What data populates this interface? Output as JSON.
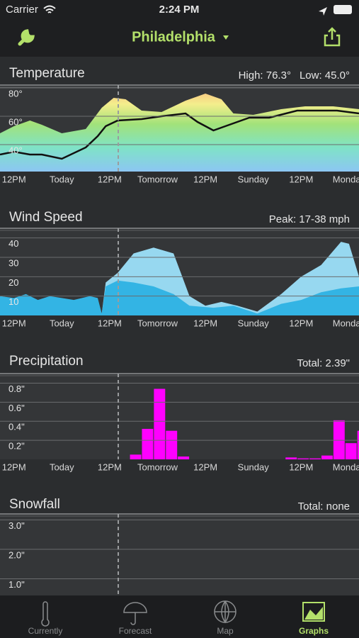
{
  "status_bar": {
    "carrier": "Carrier",
    "time": "2:24 PM"
  },
  "nav": {
    "title": "Philadelphia"
  },
  "tabs": [
    "Currently",
    "Forecast",
    "Map",
    "Graphs"
  ],
  "chart_data": [
    {
      "type": "area",
      "title": "Temperature",
      "stats": [
        "High: 76.3°",
        "Low: 45.0°"
      ],
      "xlim": [
        -3.5,
        86.5
      ],
      "xticks": [
        {
          "value": 0,
          "label": "12PM"
        },
        {
          "value": 12,
          "label": "Today"
        },
        {
          "value": 24,
          "label": "12PM"
        },
        {
          "value": 36,
          "label": "Tomorrow"
        },
        {
          "value": 48,
          "label": "12PM"
        },
        {
          "value": 60,
          "label": "Sunday"
        },
        {
          "value": 72,
          "label": "12PM"
        },
        {
          "value": 84,
          "label": "Monday"
        }
      ],
      "ylim": [
        21,
        82
      ],
      "yticks": [
        {
          "value": 40,
          "label": "40°"
        },
        {
          "value": 60,
          "label": "60°"
        },
        {
          "value": 80,
          "label": "80°"
        }
      ],
      "series": [
        {
          "type": "area",
          "color": "gradient",
          "x": [
            -3.5,
            0,
            4,
            7,
            12,
            18,
            22,
            25,
            28,
            32,
            37,
            43,
            48,
            52,
            55,
            60,
            67,
            73,
            80,
            86.5
          ],
          "values": [
            48,
            53,
            57,
            54,
            48,
            51,
            66,
            73,
            72,
            64,
            63,
            71,
            76,
            72,
            62,
            61,
            65,
            67,
            67,
            65
          ]
        },
        {
          "type": "line",
          "color": "#111111",
          "x": [
            -3.5,
            0,
            4,
            7,
            12,
            18,
            21,
            23,
            26,
            32,
            37,
            43,
            46,
            50,
            53,
            59,
            64,
            71,
            76,
            81,
            86.5
          ],
          "values": [
            33,
            35,
            33,
            33,
            30,
            38,
            46,
            53,
            57,
            58,
            60,
            62,
            56,
            50,
            53,
            59,
            59,
            64,
            64,
            64,
            62
          ]
        }
      ]
    },
    {
      "type": "area",
      "title": "Wind Speed",
      "stats": [
        "Peak: 17-38 mph"
      ],
      "xlim": [
        -3.5,
        86.5
      ],
      "xticks": [
        {
          "value": 0,
          "label": "12PM"
        },
        {
          "value": 12,
          "label": "Today"
        },
        {
          "value": 24,
          "label": "12PM"
        },
        {
          "value": 36,
          "label": "Tomorrow"
        },
        {
          "value": 48,
          "label": "12PM"
        },
        {
          "value": 60,
          "label": "Sunday"
        },
        {
          "value": 72,
          "label": "12PM"
        },
        {
          "value": 84,
          "label": "Monday"
        }
      ],
      "ylim": [
        0,
        45
      ],
      "yticks": [
        10,
        20,
        30,
        40
      ],
      "series": [
        {
          "type": "area",
          "color": "#97d8f0",
          "x": [
            -3.5,
            22,
            23,
            26,
            30,
            35,
            40,
            44,
            48,
            52,
            56,
            61,
            67,
            72,
            77,
            82,
            84,
            86.5
          ],
          "values": [
            10,
            1,
            17,
            22,
            32,
            35,
            32,
            10,
            5,
            7,
            5,
            2,
            11,
            20,
            26,
            38,
            37,
            20
          ]
        },
        {
          "type": "area",
          "color": "#33b4e4",
          "x": [
            -3.5,
            0,
            3,
            6,
            9,
            12,
            15,
            19,
            21,
            22,
            23,
            24,
            26,
            30,
            35,
            40,
            44,
            50,
            55,
            61,
            67,
            72,
            77,
            82,
            86.5
          ],
          "values": [
            10,
            9,
            11,
            8,
            10,
            9,
            8,
            10,
            9,
            1,
            15,
            16,
            18,
            17,
            15,
            11,
            5,
            4,
            5,
            1,
            6,
            8,
            12,
            14,
            15
          ]
        }
      ]
    },
    {
      "type": "bar",
      "title": "Precipitation",
      "stats": [
        "Total: 2.39\""
      ],
      "color": "#ff00ff",
      "xlim": [
        -3.5,
        86.5
      ],
      "xticks": [
        {
          "value": 0,
          "label": "12PM"
        },
        {
          "value": 12,
          "label": "Today"
        },
        {
          "value": 24,
          "label": "12PM"
        },
        {
          "value": 36,
          "label": "Tomorrow"
        },
        {
          "value": 48,
          "label": "12PM"
        },
        {
          "value": 60,
          "label": "Sunday"
        },
        {
          "value": 72,
          "label": "12PM"
        },
        {
          "value": 84,
          "label": "Monday"
        }
      ],
      "ylim": [
        0,
        0.9
      ],
      "yticks": [
        {
          "value": 0.2,
          "label": "0.2\""
        },
        {
          "value": 0.4,
          "label": "0.4\""
        },
        {
          "value": 0.6,
          "label": "0.6\""
        },
        {
          "value": 0.8,
          "label": "0.8\""
        }
      ],
      "x": [
        30.5,
        33.5,
        36.5,
        39.5,
        42.5,
        69.5,
        72.5,
        75.5,
        78.5,
        81.5,
        84.5,
        87.5
      ],
      "values": [
        0.05,
        0.32,
        0.74,
        0.3,
        0.03,
        0.02,
        0.01,
        0.01,
        0.04,
        0.41,
        0.17,
        0.3
      ]
    },
    {
      "type": "bar",
      "title": "Snowfall",
      "stats": [
        "Total: none"
      ],
      "ylim": [
        0,
        3.2
      ],
      "yticks": [
        {
          "value": 1,
          "label": "1.0\""
        },
        {
          "value": 2,
          "label": "2.0\""
        },
        {
          "value": 3,
          "label": "3.0\""
        }
      ]
    }
  ]
}
